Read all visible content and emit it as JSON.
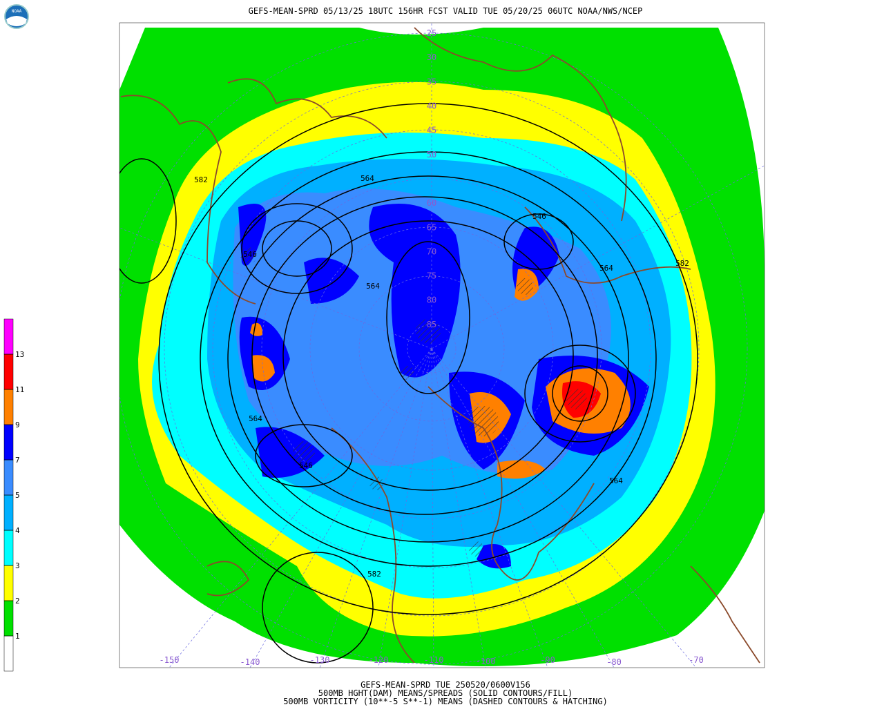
{
  "header": {
    "title": "GEFS-MEAN-SPRD 05/13/25 18UTC 156HR FCST VALID TUE 05/20/25 06UTC NOAA/NWS/NCEP",
    "logo": "NOAA"
  },
  "legend": {
    "levels": [
      1,
      2,
      3,
      4,
      5,
      7,
      9,
      11,
      13
    ],
    "colors": [
      "#ffffff",
      "#00e000",
      "#ffff00",
      "#00ffff",
      "#00b0ff",
      "#3a8cff",
      "#0000ff",
      "#ff8000",
      "#ff0000",
      "#ff00ff"
    ]
  },
  "latitude_labels": [
    "25",
    "30",
    "35",
    "40",
    "45",
    "50",
    "60",
    "65",
    "70",
    "75",
    "80",
    "85"
  ],
  "longitude_labels": [
    "-150",
    "-140",
    "-130",
    "-120",
    "-110",
    "-100",
    "-90",
    "-80",
    "-70"
  ],
  "contour_labels": [
    "582",
    "564",
    "546",
    "564",
    "582",
    "546",
    "564",
    "546",
    "564",
    "582",
    "564"
  ],
  "footer": {
    "lines": [
      "GEFS-MEAN-SPRD TUE 250520/0600V156",
      "500MB HGHT(DAM) MEANS/SPREADS (SOLID CONTOURS/FILL)",
      "500MB VORTICITY (10**-5 S**-1) MEANS (DASHED CONTOURS & HATCHING)"
    ]
  }
}
